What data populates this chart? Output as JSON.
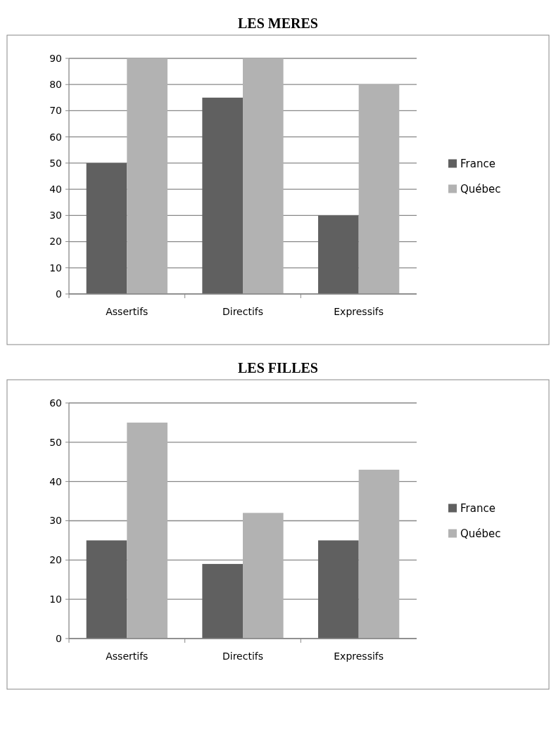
{
  "chart_data": [
    {
      "type": "bar",
      "title": "LES MERES",
      "categories": [
        "Assertifs",
        "Directifs",
        "Expressifs"
      ],
      "series": [
        {
          "name": "France",
          "color": "#606060",
          "values": [
            50,
            75,
            30
          ]
        },
        {
          "name": "Québec",
          "color": "#b2b2b2",
          "values": [
            90,
            90,
            80
          ]
        }
      ],
      "ylim": [
        0,
        90
      ],
      "yticks": [
        0,
        10,
        20,
        30,
        40,
        50,
        60,
        70,
        80,
        90
      ],
      "grid": "y",
      "legend": "right"
    },
    {
      "type": "bar",
      "title": "LES FILLES",
      "categories": [
        "Assertifs",
        "Directifs",
        "Expressifs"
      ],
      "series": [
        {
          "name": "France",
          "color": "#606060",
          "values": [
            25,
            19,
            25
          ]
        },
        {
          "name": "Québec",
          "color": "#b2b2b2",
          "values": [
            55,
            32,
            43
          ]
        }
      ],
      "ylim": [
        0,
        60
      ],
      "yticks": [
        0,
        10,
        20,
        30,
        40,
        50,
        60
      ],
      "grid": "y",
      "legend": "right"
    }
  ]
}
